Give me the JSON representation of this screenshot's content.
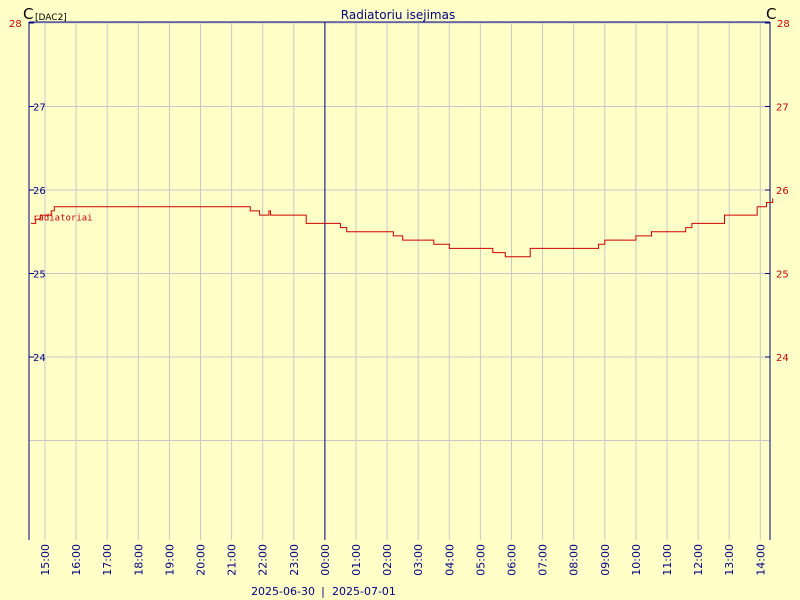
{
  "chart_data": {
    "type": "line",
    "title": "Radiatoriu isejimas",
    "unit_left": "C",
    "unit_left_sub": "[DAC2]",
    "unit_right": "C",
    "ylim": [
      23,
      28
    ],
    "y_ticks": [
      "24",
      "25",
      "26",
      "27",
      "28"
    ],
    "x_ticks": [
      "15:00",
      "16:00",
      "17:00",
      "18:00",
      "19:00",
      "20:00",
      "21:00",
      "22:00",
      "23:00",
      "00:00",
      "01:00",
      "02:00",
      "03:00",
      "04:00",
      "05:00",
      "06:00",
      "07:00",
      "08:00",
      "09:00",
      "10:00",
      "11:00",
      "12:00",
      "13:00",
      "14:00"
    ],
    "dates": [
      "2025-06-30",
      "2025-07-01"
    ],
    "grid": true,
    "series": [
      {
        "name": "radiatoriai",
        "color": "#cc0000",
        "points": [
          [
            14.55,
            25.6
          ],
          [
            14.7,
            25.65
          ],
          [
            14.85,
            25.7
          ],
          [
            15.0,
            25.7
          ],
          [
            15.2,
            25.75
          ],
          [
            15.3,
            25.8
          ],
          [
            15.5,
            25.8
          ],
          [
            18.0,
            25.8
          ],
          [
            20.0,
            25.8
          ],
          [
            21.4,
            25.8
          ],
          [
            21.6,
            25.75
          ],
          [
            21.9,
            25.7
          ],
          [
            22.2,
            25.75
          ],
          [
            22.25,
            25.7
          ],
          [
            23.0,
            25.7
          ],
          [
            23.4,
            25.6
          ],
          [
            23.8,
            25.6
          ],
          [
            24.0,
            25.6
          ],
          [
            24.5,
            25.55
          ],
          [
            24.7,
            25.5
          ],
          [
            25.0,
            25.5
          ],
          [
            26.0,
            25.5
          ],
          [
            26.2,
            25.45
          ],
          [
            26.5,
            25.4
          ],
          [
            27.0,
            25.4
          ],
          [
            27.5,
            25.35
          ],
          [
            28.0,
            25.3
          ],
          [
            29.0,
            25.3
          ],
          [
            29.4,
            25.25
          ],
          [
            29.8,
            25.2
          ],
          [
            30.3,
            25.2
          ],
          [
            30.6,
            25.3
          ],
          [
            31.0,
            25.3
          ],
          [
            32.0,
            25.3
          ],
          [
            32.8,
            25.35
          ],
          [
            33.0,
            25.4
          ],
          [
            33.6,
            25.4
          ],
          [
            34.0,
            25.45
          ],
          [
            34.5,
            25.5
          ],
          [
            35.0,
            25.5
          ],
          [
            35.6,
            25.55
          ],
          [
            35.8,
            25.6
          ],
          [
            36.7,
            25.6
          ],
          [
            36.85,
            25.7
          ],
          [
            37.0,
            25.7
          ],
          [
            37.9,
            25.8
          ],
          [
            38.0,
            25.8
          ],
          [
            38.2,
            25.85
          ],
          [
            38.4,
            25.9
          ]
        ]
      }
    ]
  }
}
